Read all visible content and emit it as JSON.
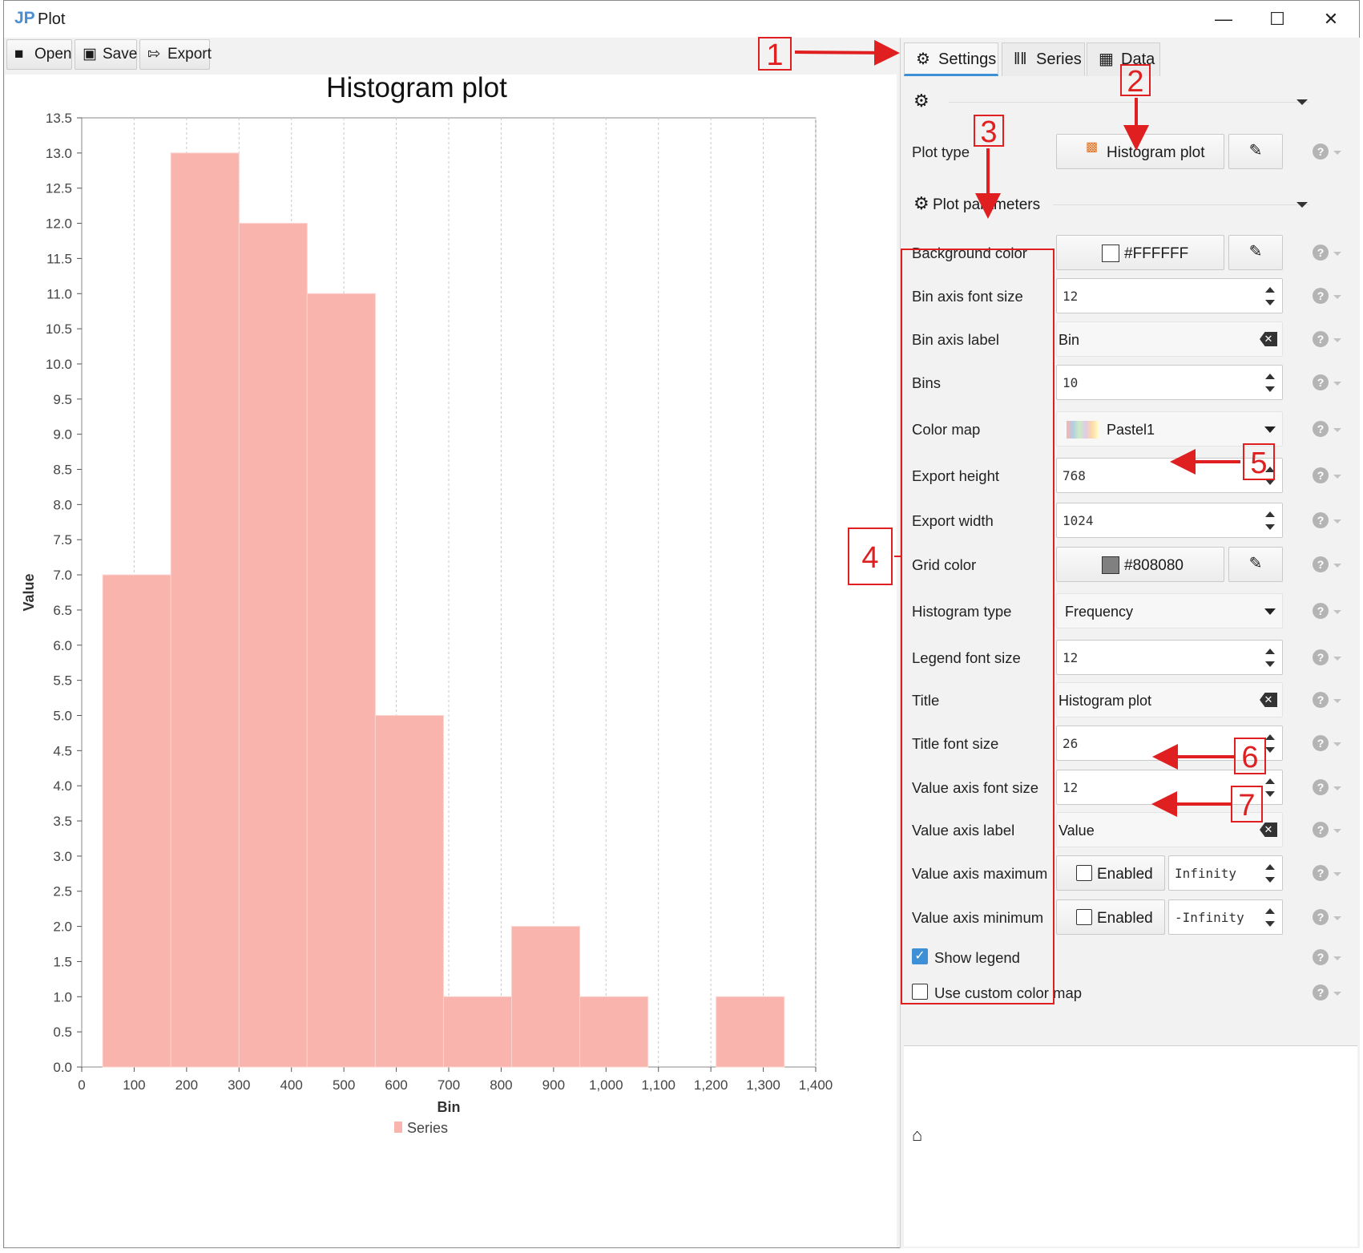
{
  "window": {
    "title": "Plot",
    "logo": "JP"
  },
  "toolbar": {
    "open": "Open",
    "save": "Save",
    "export": "Export"
  },
  "tabs": [
    {
      "label": "Settings",
      "icon": "gear-icon"
    },
    {
      "label": "Series",
      "icon": "columns-icon"
    },
    {
      "label": "Data",
      "icon": "table-icon"
    }
  ],
  "settings": {
    "plot_type_label": "Plot type",
    "plot_type_value": "Histogram plot",
    "section_params": "Plot parameters",
    "params": [
      {
        "label": "Background color",
        "kind": "color",
        "value": "#FFFFFF",
        "swatch": "#FFFFFF"
      },
      {
        "label": "Bin axis font size",
        "kind": "spin",
        "value": "12"
      },
      {
        "label": "Bin axis label",
        "kind": "text",
        "value": "Bin"
      },
      {
        "label": "Bins",
        "kind": "spin",
        "value": "10"
      },
      {
        "label": "Color map",
        "kind": "combo",
        "value": "Pastel1"
      },
      {
        "label": "Export height",
        "kind": "spin",
        "value": "768"
      },
      {
        "label": "Export width",
        "kind": "spin",
        "value": "1024"
      },
      {
        "label": "Grid color",
        "kind": "color",
        "value": "#808080",
        "swatch": "#808080"
      },
      {
        "label": "Histogram type",
        "kind": "combo",
        "value": "Frequency"
      },
      {
        "label": "Legend font size",
        "kind": "spin",
        "value": "12"
      },
      {
        "label": "Title",
        "kind": "text",
        "value": "Histogram plot"
      },
      {
        "label": "Title font size",
        "kind": "spin",
        "value": "26"
      },
      {
        "label": "Value axis font size",
        "kind": "spin",
        "value": "12"
      },
      {
        "label": "Value axis label",
        "kind": "text",
        "value": "Value"
      },
      {
        "label": "Value axis maximum",
        "kind": "limit",
        "check": "Enabled",
        "value": "Infinity"
      },
      {
        "label": "Value axis minimum",
        "kind": "limit",
        "check": "Enabled",
        "value": "-Infinity"
      }
    ],
    "show_legend": "Show legend",
    "use_custom_color_map": "Use custom color map"
  },
  "annotations": [
    "1",
    "2",
    "3",
    "4",
    "5",
    "6",
    "7"
  ],
  "chart_data": {
    "type": "bar",
    "title": "Histogram plot",
    "xlabel": "Bin",
    "ylabel": "Value",
    "bins": [
      {
        "x0": 40,
        "x1": 170,
        "value": 7
      },
      {
        "x0": 170,
        "x1": 300,
        "value": 13
      },
      {
        "x0": 300,
        "x1": 430,
        "value": 12
      },
      {
        "x0": 430,
        "x1": 560,
        "value": 11
      },
      {
        "x0": 560,
        "x1": 690,
        "value": 5
      },
      {
        "x0": 690,
        "x1": 820,
        "value": 1
      },
      {
        "x0": 820,
        "x1": 950,
        "value": 2
      },
      {
        "x0": 950,
        "x1": 1080,
        "value": 1
      },
      {
        "x0": 1080,
        "x1": 1210,
        "value": 0
      },
      {
        "x0": 1210,
        "x1": 1340,
        "value": 1
      }
    ],
    "xlim": [
      0,
      1400
    ],
    "ylim": [
      0,
      13.5
    ],
    "xticks": [
      "0",
      "100",
      "200",
      "300",
      "400",
      "500",
      "600",
      "700",
      "800",
      "900",
      "1,000",
      "1,100",
      "1,200",
      "1,300",
      "1,400"
    ],
    "yticks": [
      "0.0",
      "0.5",
      "1.0",
      "1.5",
      "2.0",
      "2.5",
      "3.0",
      "3.5",
      "4.0",
      "4.5",
      "5.0",
      "5.5",
      "6.0",
      "6.5",
      "7.0",
      "7.5",
      "8.0",
      "8.5",
      "9.0",
      "9.5",
      "10.0",
      "10.5",
      "11.0",
      "11.5",
      "12.0",
      "12.5",
      "13.0",
      "13.5"
    ],
    "series": [
      {
        "name": "Series",
        "color": "#F9B4AE"
      }
    ],
    "legend": "bottom",
    "grid": "vertical dashed",
    "grid_color": "#808080"
  }
}
